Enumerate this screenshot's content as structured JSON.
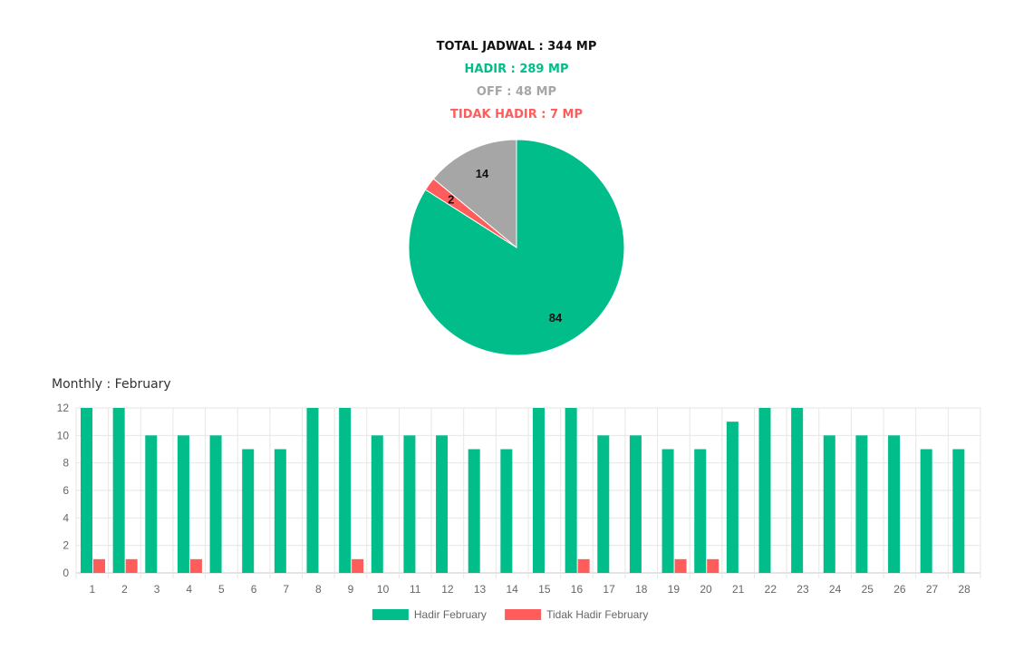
{
  "summary": {
    "total": "TOTAL JADWAL : 344 MP",
    "hadir": "HADIR : 289 MP",
    "off": "OFF : 48 MP",
    "tidak_hadir": "TIDAK HADIR : 7 MP"
  },
  "colors": {
    "hadir": "#00bd8a",
    "off": "#a6a6a6",
    "tidak_hadir": "#ff5c5c"
  },
  "monthly": {
    "title": "Monthly : February"
  },
  "chart_data": [
    {
      "type": "pie",
      "slices": [
        {
          "label": "Hadir",
          "value": 84,
          "color": "#00bd8a"
        },
        {
          "label": "Tidak Hadir",
          "value": 2,
          "color": "#ff5c5c"
        },
        {
          "label": "Off",
          "value": 14,
          "color": "#a6a6a6"
        }
      ]
    },
    {
      "type": "bar",
      "title": "Monthly : February",
      "categories": [
        "1",
        "2",
        "3",
        "4",
        "5",
        "6",
        "7",
        "8",
        "9",
        "10",
        "11",
        "12",
        "13",
        "14",
        "15",
        "16",
        "17",
        "18",
        "19",
        "20",
        "21",
        "22",
        "23",
        "24",
        "25",
        "26",
        "27",
        "28"
      ],
      "series": [
        {
          "name": "Hadir February",
          "color": "#00bd8a",
          "values": [
            12,
            12,
            10,
            10,
            10,
            9,
            9,
            12,
            12,
            10,
            10,
            10,
            9,
            9,
            12,
            12,
            10,
            10,
            9,
            9,
            11,
            12,
            12,
            10,
            10,
            10,
            9,
            9
          ]
        },
        {
          "name": "Tidak Hadir February",
          "color": "#ff5c5c",
          "values": [
            1,
            1,
            0,
            1,
            0,
            0,
            0,
            0,
            1,
            0,
            0,
            0,
            0,
            0,
            0,
            1,
            0,
            0,
            1,
            1,
            0,
            0,
            0,
            0,
            0,
            0,
            0,
            0
          ]
        }
      ],
      "ylim": [
        0,
        12
      ],
      "yticks": [
        0,
        2,
        4,
        6,
        8,
        10,
        12
      ],
      "grid": true,
      "legend": "bottom"
    }
  ]
}
